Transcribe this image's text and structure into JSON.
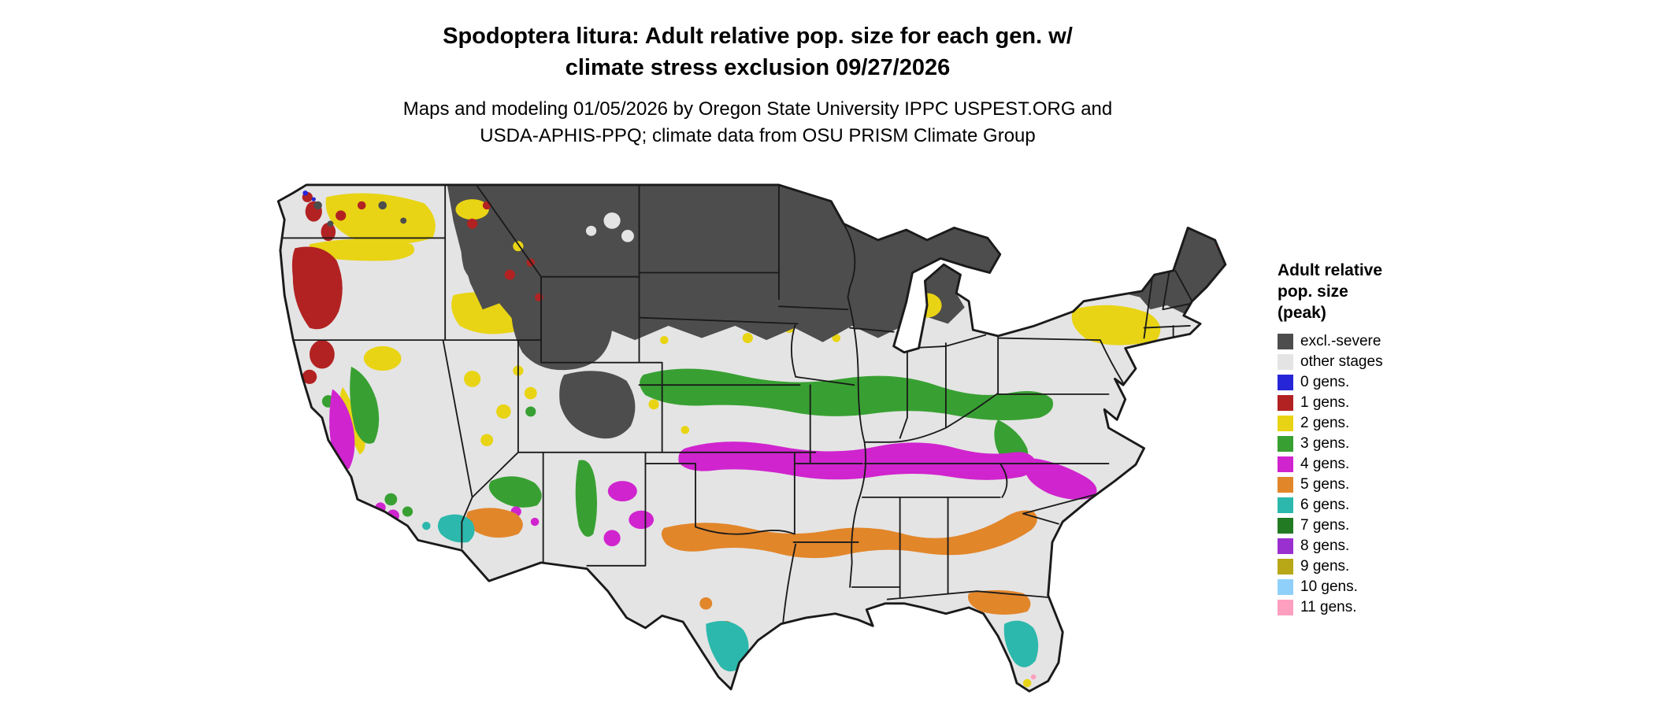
{
  "title": {
    "line1": "Spodoptera litura: Adult relative pop. size for each gen. w/",
    "line2": "climate stress exclusion 09/27/2026"
  },
  "subtitle": {
    "line1": "Maps and modeling 01/05/2026 by Oregon State University IPPC USPEST.ORG and",
    "line2": "USDA-APHIS-PPQ; climate data from OSU PRISM Climate Group"
  },
  "legend": {
    "title_line1": "Adult relative",
    "title_line2": "pop. size",
    "title_line3": "(peak)",
    "items": [
      {
        "label": "excl.-severe",
        "color": "#4d4d4d"
      },
      {
        "label": "other stages",
        "color": "#e4e4e4"
      },
      {
        "label": "0 gens.",
        "color": "#2626d8"
      },
      {
        "label": "1 gens.",
        "color": "#b22222"
      },
      {
        "label": "2 gens.",
        "color": "#e8d414"
      },
      {
        "label": "3 gens.",
        "color": "#38a032"
      },
      {
        "label": "4 gens.",
        "color": "#d024ce"
      },
      {
        "label": "5 gens.",
        "color": "#e2862a"
      },
      {
        "label": "6 gens.",
        "color": "#2cb8ac"
      },
      {
        "label": "7 gens.",
        "color": "#227a22"
      },
      {
        "label": "8 gens.",
        "color": "#9b30d0"
      },
      {
        "label": "9 gens.",
        "color": "#b8a716"
      },
      {
        "label": "10 gens.",
        "color": "#8fd0fa"
      },
      {
        "label": "11 gens.",
        "color": "#ff9fc0"
      }
    ]
  }
}
